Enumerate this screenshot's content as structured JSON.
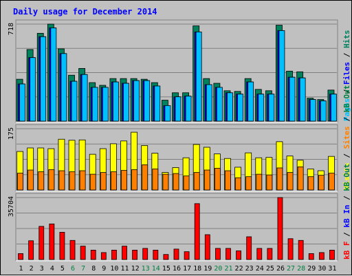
{
  "chart_data": {
    "type": "bar",
    "title": "Daily usage for December 2014",
    "title_color": "#0000ff",
    "categories": [
      "1",
      "2",
      "3",
      "4",
      "5",
      "6",
      "7",
      "8",
      "9",
      "10",
      "11",
      "12",
      "13",
      "14",
      "15",
      "16",
      "17",
      "18",
      "19",
      "20",
      "21",
      "22",
      "23",
      "24",
      "25",
      "26",
      "27",
      "28",
      "29",
      "30",
      "31"
    ],
    "weekend_days": [
      "6",
      "7",
      "13",
      "14",
      "20",
      "21",
      "27",
      "28"
    ],
    "weekend_color": "#008040",
    "weekday_color": "#000000",
    "panels": [
      {
        "id": "pages_files_hits",
        "ymax": 718,
        "ymax_label": "718",
        "legend": [
          {
            "text": "Pages",
            "color": "#00c0ff"
          },
          {
            "text": " / ",
            "color": "#000000"
          },
          {
            "text": "Files",
            "color": "#0000ff"
          },
          {
            "text": " / ",
            "color": "#000000"
          },
          {
            "text": "Hits",
            "color": "#00805c"
          }
        ],
        "series": [
          {
            "name": "Hits",
            "color": "#00805c",
            "values": [
              310,
              530,
              650,
              718,
              535,
              340,
              390,
              285,
              265,
              315,
              315,
              315,
              310,
              285,
              155,
              210,
              210,
              705,
              315,
              280,
              225,
              220,
              315,
              235,
              225,
              710,
              370,
              365,
              170,
              160,
              230
            ]
          },
          {
            "name": "Files",
            "color": "#0000ff",
            "values": [
              275,
              470,
              625,
              690,
              500,
              295,
              345,
              250,
              250,
              290,
              280,
              300,
              300,
              260,
              115,
              180,
              185,
              660,
              270,
              250,
              210,
              200,
              290,
              200,
              200,
              670,
              325,
              320,
              160,
              150,
              200
            ]
          },
          {
            "name": "Pages",
            "color": "#00c0ff",
            "values": [
              275,
              470,
              625,
              690,
              500,
              295,
              345,
              250,
              250,
              290,
              280,
              300,
              300,
              260,
              115,
              180,
              185,
              660,
              270,
              250,
              210,
              200,
              290,
              200,
              200,
              670,
              325,
              320,
              160,
              150,
              200
            ]
          }
        ]
      },
      {
        "id": "visits_sites",
        "ymax": 175,
        "ymax_label": "175",
        "legend": [
          {
            "text": "Visits",
            "color": "#ffff00"
          },
          {
            "text": " / ",
            "color": "#000000"
          },
          {
            "text": "Sites",
            "color": "#ff8000"
          },
          {
            "text": " / ",
            "color": "#000000"
          },
          {
            "text": "kB Out",
            "color": "#008040"
          }
        ],
        "series": [
          {
            "name": "Visits",
            "color": "#ffff00",
            "values": [
              110,
              120,
              120,
              118,
              145,
              142,
              143,
              102,
              118,
              132,
              140,
              165,
              127,
              105,
              50,
              64,
              92,
              130,
              122,
              103,
              90,
              65,
              106,
              92,
              93,
              138,
              97,
              85,
              60,
              55,
              96
            ]
          },
          {
            "name": "Sites",
            "color": "#ff8000",
            "values": [
              48,
              57,
              52,
              58,
              55,
              52,
              55,
              45,
              50,
              52,
              56,
              58,
              72,
              60,
              45,
              47,
              40,
              50,
              57,
              62,
              55,
              35,
              38,
              45,
              43,
              63,
              50,
              66,
              38,
              42,
              48
            ]
          }
        ]
      },
      {
        "id": "kb",
        "ymax": 35704,
        "ymax_label": "35704",
        "legend": [
          {
            "text": "kB F",
            "color": "#ff0000"
          },
          {
            "text": " / ",
            "color": "#000000"
          },
          {
            "text": "kB In",
            "color": "#0000ff"
          },
          {
            "text": " / ",
            "color": "#000000"
          },
          {
            "text": "kB Out",
            "color": "#008040"
          }
        ],
        "series": [
          {
            "name": "kB F",
            "color": "#ff0000",
            "values": [
              3400,
              10800,
              19100,
              20500,
              15700,
              11000,
              7700,
              5400,
              4000,
              5400,
              7700,
              5400,
              6400,
              5400,
              2900,
              6000,
              4500,
              32200,
              14300,
              6400,
              6400,
              5000,
              13100,
              6400,
              6400,
              35704,
              12000,
              11000,
              3400,
              4000,
              5400
            ]
          }
        ]
      }
    ],
    "grid": true
  }
}
